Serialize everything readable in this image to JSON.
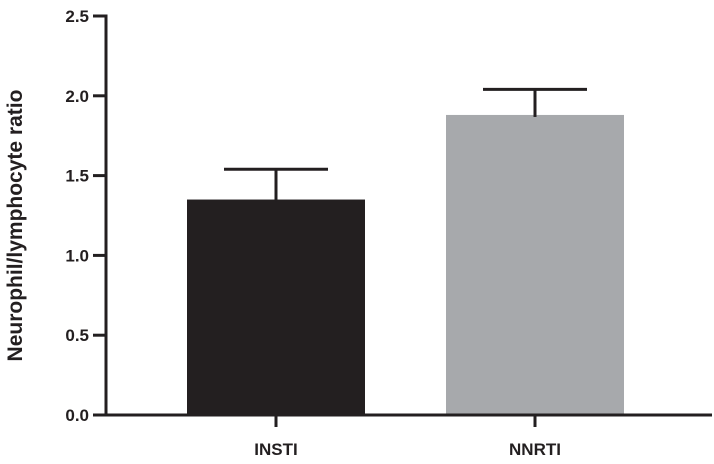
{
  "chart_data": {
    "type": "bar",
    "title": "",
    "xlabel": "",
    "ylabel": "Neurophil/lymphocyte ratio",
    "ylim": [
      0,
      2.5
    ],
    "yticks": [
      0.0,
      0.5,
      1.0,
      1.5,
      2.0,
      2.5
    ],
    "ytick_labels": [
      "0.0",
      "0.5",
      "1.0",
      "1.5",
      "2.0",
      "2.5"
    ],
    "categories": [
      "INSTI",
      "NNRTI"
    ],
    "values": [
      1.35,
      1.88
    ],
    "error_upper": [
      1.54,
      2.04
    ],
    "bar_colors": [
      "#231f20",
      "#a7a9ac"
    ],
    "grid": false,
    "legend": "none"
  }
}
